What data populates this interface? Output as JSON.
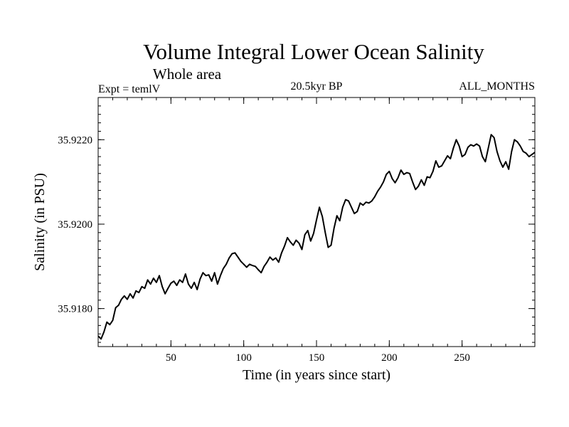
{
  "chart_data": {
    "type": "line",
    "title": "Volume Integral Lower Ocean Salinity",
    "subtitle": "Whole area",
    "left_label": "Expt = temlV",
    "center_label": "20.5kyr BP",
    "right_label": "ALL_MONTHS",
    "xlabel": "Time (in years since start)",
    "ylabel": "Salinity (in PSU)",
    "xlim": [
      0,
      300
    ],
    "ylim": [
      35.9171,
      35.923
    ],
    "x_major_ticks": [
      50,
      100,
      150,
      200,
      250
    ],
    "x_minor_step": 10,
    "y_major_ticks": [
      35.918,
      35.92,
      35.922
    ],
    "y_tick_labels": [
      "35.9180",
      "35.9200",
      "35.9220"
    ],
    "y_minor_step": 0.0002,
    "line_color": "#000000",
    "series": [
      {
        "name": "Salinity",
        "points": [
          [
            0,
            35.91735
          ],
          [
            2,
            35.91728
          ],
          [
            4,
            35.91745
          ],
          [
            6,
            35.91768
          ],
          [
            8,
            35.91762
          ],
          [
            10,
            35.91772
          ],
          [
            12,
            35.91802
          ],
          [
            14,
            35.91808
          ],
          [
            16,
            35.91822
          ],
          [
            18,
            35.9183
          ],
          [
            20,
            35.91822
          ],
          [
            22,
            35.91835
          ],
          [
            24,
            35.91825
          ],
          [
            26,
            35.91842
          ],
          [
            28,
            35.91838
          ],
          [
            30,
            35.91852
          ],
          [
            32,
            35.91848
          ],
          [
            34,
            35.91868
          ],
          [
            36,
            35.91858
          ],
          [
            38,
            35.91872
          ],
          [
            40,
            35.91862
          ],
          [
            42,
            35.91878
          ],
          [
            44,
            35.91852
          ],
          [
            46,
            35.91835
          ],
          [
            48,
            35.91848
          ],
          [
            50,
            35.9186
          ],
          [
            52,
            35.91865
          ],
          [
            54,
            35.91855
          ],
          [
            56,
            35.91868
          ],
          [
            58,
            35.91862
          ],
          [
            60,
            35.91882
          ],
          [
            62,
            35.91858
          ],
          [
            64,
            35.91848
          ],
          [
            66,
            35.91862
          ],
          [
            68,
            35.91845
          ],
          [
            70,
            35.9187
          ],
          [
            72,
            35.91885
          ],
          [
            74,
            35.91878
          ],
          [
            76,
            35.9188
          ],
          [
            78,
            35.91865
          ],
          [
            80,
            35.91885
          ],
          [
            82,
            35.91858
          ],
          [
            84,
            35.91878
          ],
          [
            86,
            35.91895
          ],
          [
            88,
            35.91905
          ],
          [
            90,
            35.9192
          ],
          [
            92,
            35.9193
          ],
          [
            94,
            35.91932
          ],
          [
            96,
            35.91922
          ],
          [
            98,
            35.91912
          ],
          [
            100,
            35.91905
          ],
          [
            102,
            35.91898
          ],
          [
            104,
            35.91905
          ],
          [
            106,
            35.91902
          ],
          [
            108,
            35.919
          ],
          [
            110,
            35.91892
          ],
          [
            112,
            35.91885
          ],
          [
            114,
            35.919
          ],
          [
            116,
            35.9191
          ],
          [
            118,
            35.91922
          ],
          [
            120,
            35.91915
          ],
          [
            122,
            35.9192
          ],
          [
            124,
            35.9191
          ],
          [
            126,
            35.91932
          ],
          [
            128,
            35.91948
          ],
          [
            130,
            35.91968
          ],
          [
            132,
            35.91958
          ],
          [
            134,
            35.9195
          ],
          [
            136,
            35.91962
          ],
          [
            138,
            35.91955
          ],
          [
            140,
            35.9194
          ],
          [
            142,
            35.91975
          ],
          [
            144,
            35.91985
          ],
          [
            146,
            35.9196
          ],
          [
            148,
            35.91978
          ],
          [
            150,
            35.9201
          ],
          [
            152,
            35.9204
          ],
          [
            154,
            35.92018
          ],
          [
            156,
            35.9198
          ],
          [
            158,
            35.91945
          ],
          [
            160,
            35.9195
          ],
          [
            162,
            35.9199
          ],
          [
            164,
            35.9202
          ],
          [
            166,
            35.92008
          ],
          [
            168,
            35.9204
          ],
          [
            170,
            35.92058
          ],
          [
            172,
            35.92055
          ],
          [
            174,
            35.9204
          ],
          [
            176,
            35.92025
          ],
          [
            178,
            35.9203
          ],
          [
            180,
            35.9205
          ],
          [
            182,
            35.92045
          ],
          [
            184,
            35.92052
          ],
          [
            186,
            35.9205
          ],
          [
            188,
            35.92055
          ],
          [
            190,
            35.92065
          ],
          [
            192,
            35.92078
          ],
          [
            194,
            35.92088
          ],
          [
            196,
            35.921
          ],
          [
            198,
            35.92118
          ],
          [
            200,
            35.92125
          ],
          [
            202,
            35.92108
          ],
          [
            204,
            35.92098
          ],
          [
            206,
            35.9211
          ],
          [
            208,
            35.92128
          ],
          [
            210,
            35.92118
          ],
          [
            212,
            35.92122
          ],
          [
            214,
            35.9212
          ],
          [
            216,
            35.921
          ],
          [
            218,
            35.92082
          ],
          [
            220,
            35.9209
          ],
          [
            222,
            35.92105
          ],
          [
            224,
            35.92092
          ],
          [
            226,
            35.92112
          ],
          [
            228,
            35.9211
          ],
          [
            230,
            35.92125
          ],
          [
            232,
            35.9215
          ],
          [
            234,
            35.92135
          ],
          [
            236,
            35.92138
          ],
          [
            238,
            35.9215
          ],
          [
            240,
            35.92162
          ],
          [
            242,
            35.92155
          ],
          [
            244,
            35.9218
          ],
          [
            246,
            35.922
          ],
          [
            248,
            35.92185
          ],
          [
            250,
            35.9216
          ],
          [
            252,
            35.92165
          ],
          [
            254,
            35.92182
          ],
          [
            256,
            35.92188
          ],
          [
            258,
            35.92185
          ],
          [
            260,
            35.9219
          ],
          [
            262,
            35.92185
          ],
          [
            264,
            35.9216
          ],
          [
            266,
            35.92148
          ],
          [
            268,
            35.9218
          ],
          [
            270,
            35.92212
          ],
          [
            272,
            35.92205
          ],
          [
            274,
            35.92172
          ],
          [
            276,
            35.9215
          ],
          [
            278,
            35.92135
          ],
          [
            280,
            35.92148
          ],
          [
            282,
            35.9213
          ],
          [
            284,
            35.92172
          ],
          [
            286,
            35.922
          ],
          [
            288,
            35.92195
          ],
          [
            290,
            35.92185
          ],
          [
            292,
            35.92172
          ],
          [
            294,
            35.92168
          ],
          [
            296,
            35.9216
          ],
          [
            298,
            35.92165
          ],
          [
            300,
            35.9217
          ]
        ]
      }
    ]
  }
}
